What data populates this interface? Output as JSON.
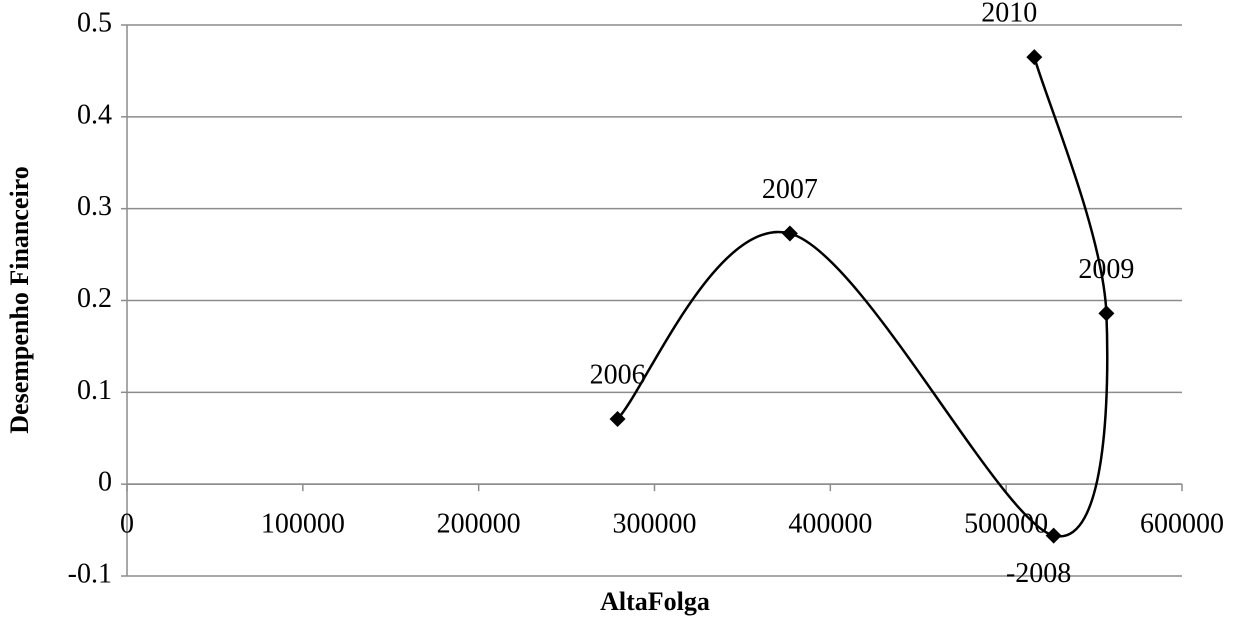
{
  "chart_data": {
    "type": "scatter-smooth",
    "x_label": "AltaFolga",
    "y_label": "Desempenho Financeiro",
    "x": [
      279000,
      377000,
      527000,
      557000,
      516000
    ],
    "values": [
      0.071,
      0.273,
      -0.056,
      0.186,
      0.465
    ],
    "point_labels": [
      "2006",
      "2007",
      "-2008",
      "2009",
      "2010"
    ],
    "color": "#000000",
    "xlim": [
      0,
      600000
    ],
    "xticks": [
      0,
      100000,
      200000,
      300000,
      400000,
      500000,
      600000
    ],
    "ylim": [
      -0.1,
      0.5
    ],
    "yticks": [
      -0.1,
      0,
      0.1,
      0.2,
      0.3,
      0.4,
      0.5
    ],
    "grid": true
  }
}
